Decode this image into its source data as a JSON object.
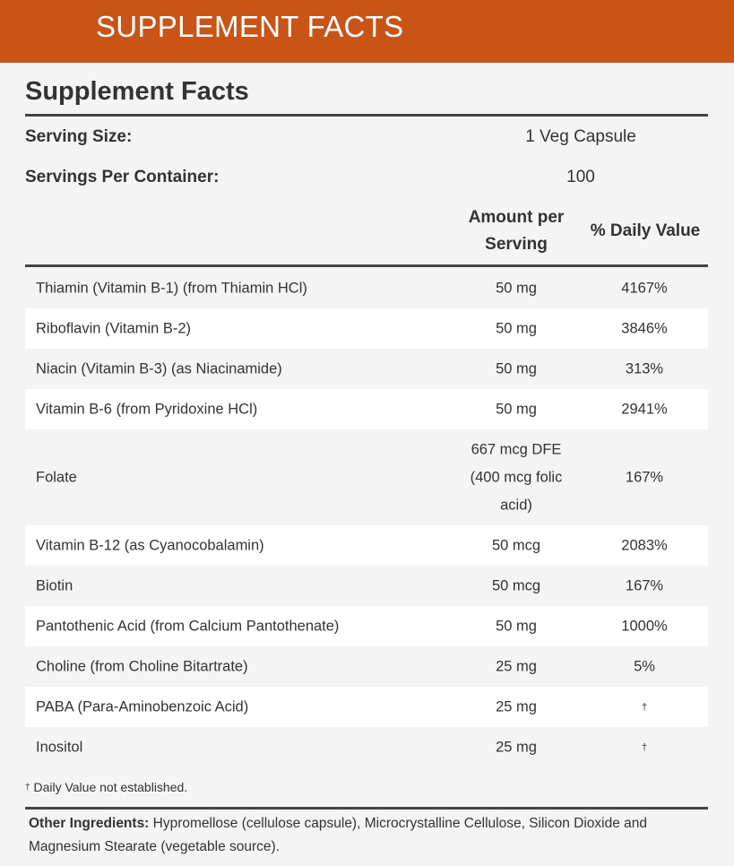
{
  "banner": {
    "title": "SUPPLEMENT FACTS"
  },
  "facts": {
    "title": "Supplement Facts",
    "serving_size_label": "Serving Size:",
    "serving_size_value": "1 Veg Capsule",
    "servings_label": "Servings Per Container:",
    "servings_value": "100",
    "col_amount_line1": "Amount per",
    "col_amount_line2": "Serving",
    "col_dv": "% Daily Value"
  },
  "rows": [
    {
      "name": "Thiamin (Vitamin B-1) (from Thiamin HCl)",
      "amount": "50 mg",
      "dv": "4167%"
    },
    {
      "name": "Riboflavin (Vitamin B-2)",
      "amount": "50 mg",
      "dv": "3846%"
    },
    {
      "name": "Niacin (Vitamin B-3) (as Niacinamide)",
      "amount": "50 mg",
      "dv": "313%"
    },
    {
      "name": "Vitamin B-6 (from Pyridoxine HCl)",
      "amount": "50 mg",
      "dv": "2941%"
    },
    {
      "name": "Folate",
      "amount_line1": "667 mcg DFE",
      "amount_line2": "(400 mcg folic",
      "amount_line3": "acid)",
      "dv": "167%"
    },
    {
      "name": "Vitamin B-12 (as Cyanocobalamin)",
      "amount": "50 mcg",
      "dv": "2083%"
    },
    {
      "name": "Biotin",
      "amount": "50 mcg",
      "dv": "167%"
    },
    {
      "name": "Pantothenic Acid (from Calcium Pantothenate)",
      "amount": "50 mg",
      "dv": "1000%"
    },
    {
      "name": "Choline (from Choline Bitartrate)",
      "amount": "25 mg",
      "dv": "5%"
    },
    {
      "name": "PABA (Para-Aminobenzoic Acid)",
      "amount": "25 mg",
      "dv": "†"
    },
    {
      "name": "Inositol",
      "amount": "25 mg",
      "dv": "†"
    }
  ],
  "footnote": {
    "dagger": "†",
    "text": " Daily Value not established."
  },
  "other_ingredients": {
    "label": "Other Ingredients:",
    "text": "  Hypromellose (cellulose capsule), Microcrystalline Cellulose, Silicon Dioxide and Magnesium Stearate (vegetable source)."
  }
}
